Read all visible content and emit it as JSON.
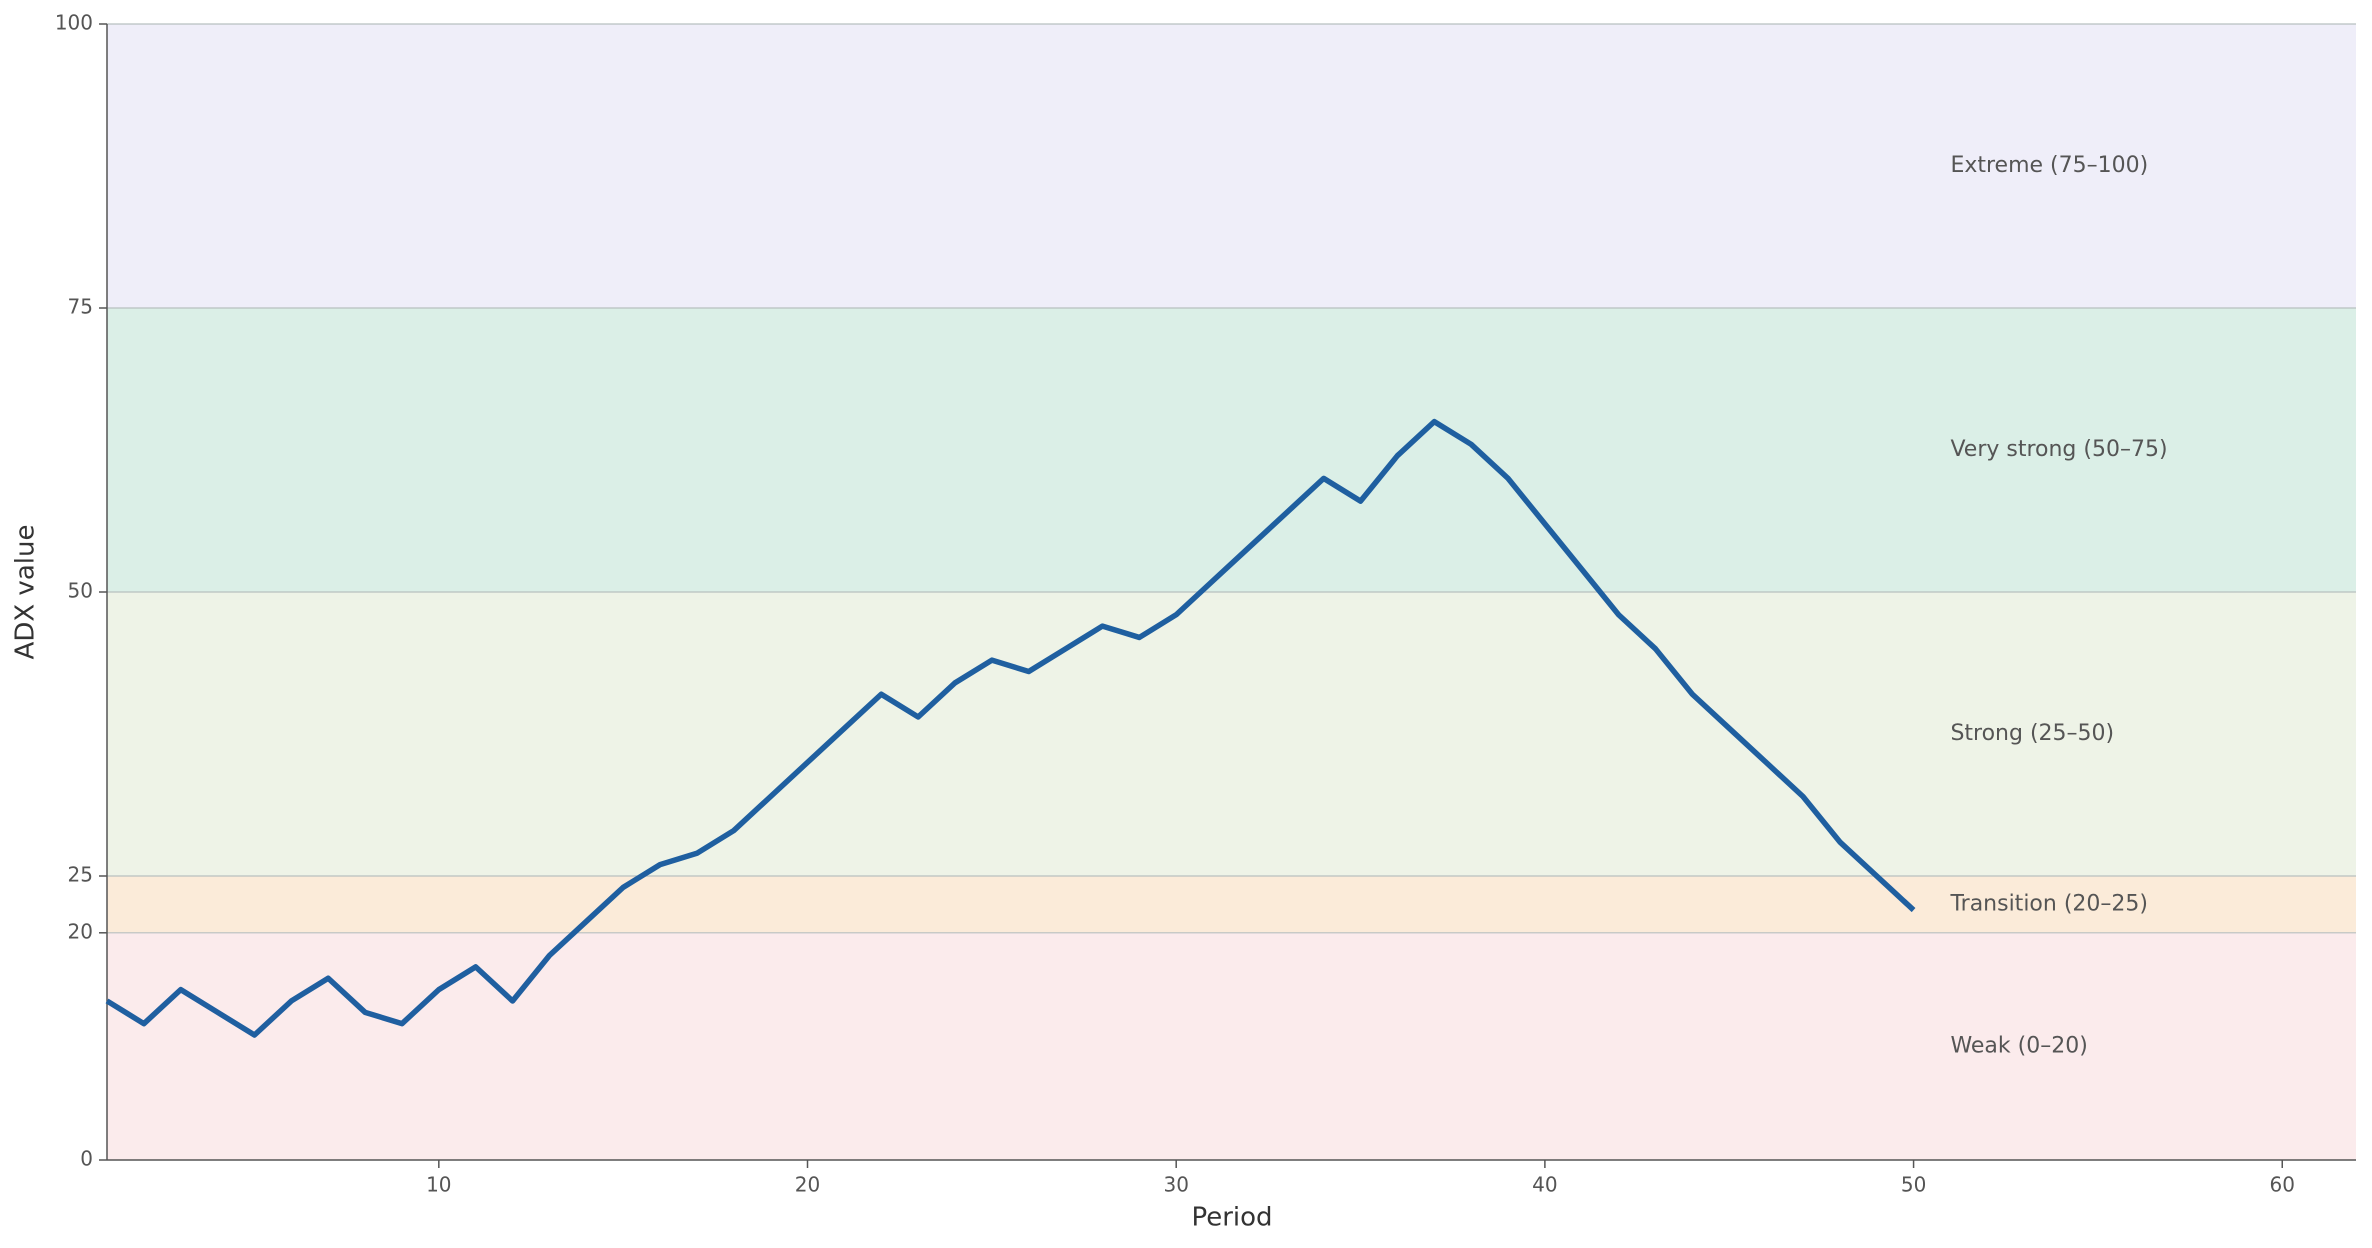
{
  "chart_data": {
    "type": "line",
    "x_label": "Period",
    "y_label": "ADX value",
    "xlim": [
      1,
      62
    ],
    "xticks": [
      10,
      20,
      30,
      40,
      50,
      60
    ],
    "ylim": [
      0,
      100
    ],
    "yticks": [
      0,
      20,
      25,
      50,
      75,
      100
    ],
    "bands": [
      {
        "from": 75,
        "to": 100,
        "label": "Extreme (75–100)",
        "color": "#efeef9",
        "text_color": "#3b3570"
      },
      {
        "from": 50,
        "to": 75,
        "label": "Very strong (50–75)",
        "color": "#dbefe7",
        "text_color": "#1b5a3a"
      },
      {
        "from": 25,
        "to": 50,
        "label": "Strong (25–50)",
        "color": "#eef3e7",
        "text_color": "#2f4a1a"
      },
      {
        "from": 20,
        "to": 25,
        "label": "Transition (20–25)",
        "color": "#fbebd9",
        "text_color": "#7a5a12"
      },
      {
        "from": 0,
        "to": 20,
        "label": "Weak (0–20)",
        "color": "#fbebec",
        "text_color": "#6a2028"
      }
    ],
    "x": [
      1,
      2,
      3,
      4,
      5,
      6,
      7,
      8,
      9,
      10,
      11,
      12,
      13,
      14,
      15,
      16,
      17,
      18,
      19,
      20,
      21,
      22,
      23,
      24,
      25,
      26,
      27,
      28,
      29,
      30,
      31,
      32,
      33,
      34,
      35,
      36,
      37,
      38,
      39,
      40,
      41,
      42,
      43,
      44,
      45,
      46,
      47,
      48,
      49,
      50
    ],
    "series": [
      {
        "name": "ADX",
        "color": "#1f5fa0",
        "values": [
          14,
          12,
          15,
          13,
          11,
          14,
          16,
          13,
          12,
          15,
          17,
          14,
          18,
          21,
          24,
          26,
          27,
          29,
          32,
          35,
          38,
          41,
          39,
          42,
          44,
          43,
          45,
          47,
          46,
          48,
          51,
          54,
          57,
          60,
          58,
          62,
          65,
          63,
          60,
          56,
          52,
          48,
          45,
          41,
          38,
          35,
          32,
          28,
          25,
          22
        ]
      }
    ]
  }
}
